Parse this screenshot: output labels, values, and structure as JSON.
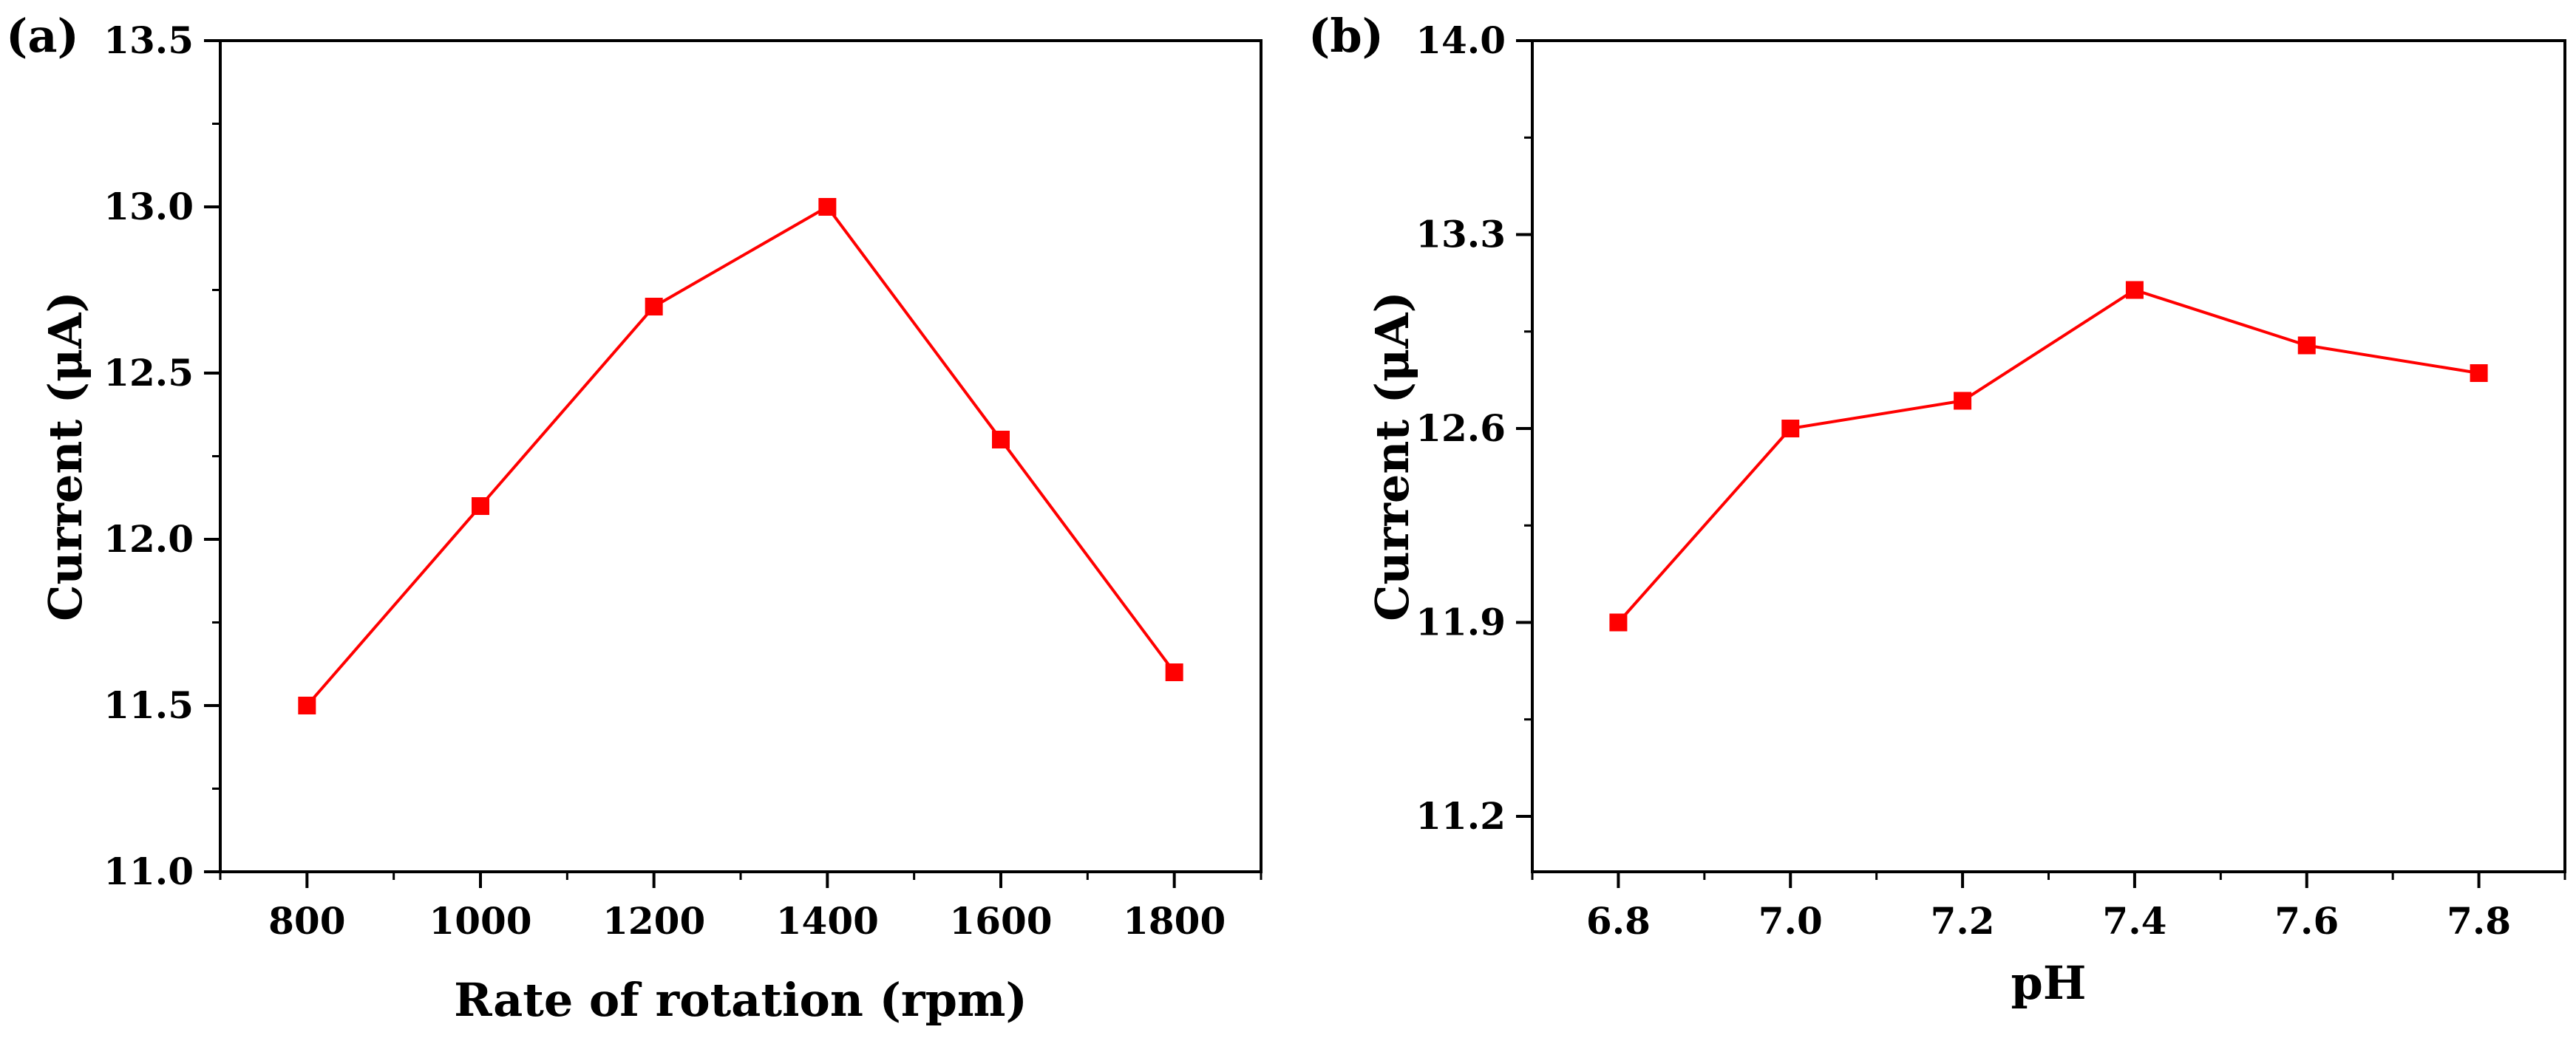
{
  "chart_data": [
    {
      "type": "line",
      "panel_label": "(a)",
      "xlabel": "Rate of rotation (rpm)",
      "ylabel": "Current (μA)",
      "x": [
        800,
        1000,
        1200,
        1400,
        1600,
        1800
      ],
      "series": [
        {
          "name": "Current",
          "values": [
            11.5,
            12.1,
            12.7,
            13.0,
            12.3,
            11.6
          ]
        }
      ],
      "xlim": [
        700,
        1900
      ],
      "ylim": [
        11.0,
        13.5
      ],
      "xticks": [
        800,
        1000,
        1200,
        1400,
        1600,
        1800
      ],
      "xtick_labels": [
        "800",
        "1000",
        "1200",
        "1400",
        "1600",
        "1800"
      ],
      "yticks": [
        11.0,
        11.5,
        12.0,
        12.5,
        13.0,
        13.5
      ],
      "ytick_labels": [
        "11.0",
        "11.5",
        "12.0",
        "12.5",
        "13.0",
        "13.5"
      ],
      "marker": "square",
      "color": "#ff0000",
      "grid": false
    },
    {
      "type": "line",
      "panel_label": "(b)",
      "xlabel": "pH",
      "ylabel": "Current (μA)",
      "x": [
        6.8,
        7.0,
        7.2,
        7.4,
        7.6,
        7.8
      ],
      "series": [
        {
          "name": "Current",
          "values": [
            11.9,
            12.6,
            12.7,
            13.1,
            12.9,
            12.8
          ]
        }
      ],
      "xlim": [
        6.7,
        7.9
      ],
      "ylim": [
        11.0,
        14.0
      ],
      "xticks": [
        6.8,
        7.0,
        7.2,
        7.4,
        7.6,
        7.8
      ],
      "xtick_labels": [
        "6.8",
        "7.0",
        "7.2",
        "7.4",
        "7.6",
        "7.8"
      ],
      "yticks": [
        11.2,
        11.9,
        12.6,
        13.3,
        14.0
      ],
      "ytick_labels": [
        "11.2",
        "11.9",
        "12.6",
        "13.3",
        "14.0"
      ],
      "marker": "square",
      "color": "#ff0000",
      "grid": false
    }
  ]
}
